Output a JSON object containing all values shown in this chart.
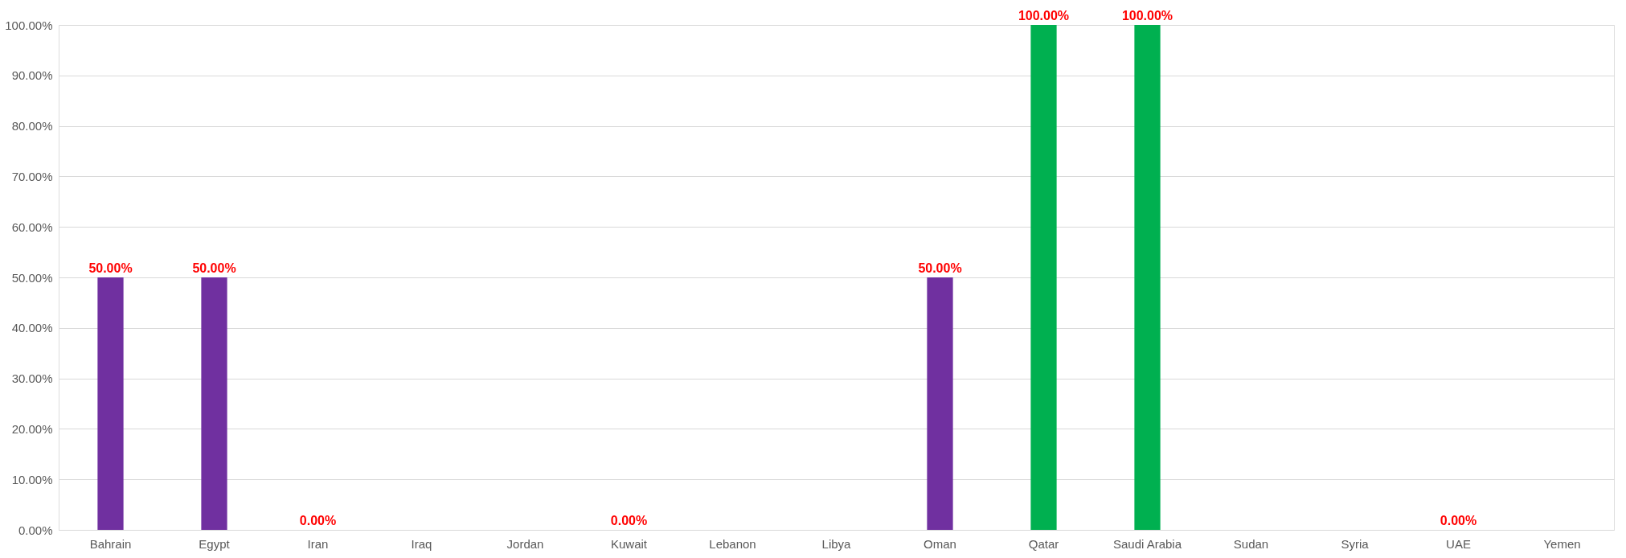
{
  "chart_data": {
    "type": "bar",
    "categories": [
      "Bahrain",
      "Egypt",
      "Iran",
      "Iraq",
      "Jordan",
      "Kuwait",
      "Lebanon",
      "Libya",
      "Oman",
      "Qatar",
      "Saudi Arabia",
      "Sudan",
      "Syria",
      "UAE",
      "Yemen"
    ],
    "values": [
      50,
      50,
      0,
      null,
      null,
      0,
      null,
      null,
      50,
      100,
      100,
      null,
      null,
      0,
      null
    ],
    "colors": [
      "#7030a0",
      "#7030a0",
      "#7030a0",
      "#7030a0",
      "#7030a0",
      "#7030a0",
      "#7030a0",
      "#7030a0",
      "#7030a0",
      "#00b050",
      "#00b050",
      "#7030a0",
      "#7030a0",
      "#7030a0",
      "#7030a0"
    ],
    "value_labels": [
      "50.00%",
      "50.00%",
      "0.00%",
      null,
      null,
      "0.00%",
      null,
      null,
      "50.00%",
      "100.00%",
      "100.00%",
      null,
      null,
      "0.00%",
      null
    ],
    "ylim": [
      0,
      100
    ],
    "yticks": [
      {
        "value": 0,
        "label": "0.00%"
      },
      {
        "value": 10,
        "label": "10.00%"
      },
      {
        "value": 20,
        "label": "20.00%"
      },
      {
        "value": 30,
        "label": "30.00%"
      },
      {
        "value": 40,
        "label": "40.00%"
      },
      {
        "value": 50,
        "label": "50.00%"
      },
      {
        "value": 60,
        "label": "60.00%"
      },
      {
        "value": 70,
        "label": "70.00%"
      },
      {
        "value": 80,
        "label": "80.00%"
      },
      {
        "value": 90,
        "label": "90.00%"
      },
      {
        "value": 100,
        "label": "100.00%"
      }
    ],
    "grid": "y"
  }
}
